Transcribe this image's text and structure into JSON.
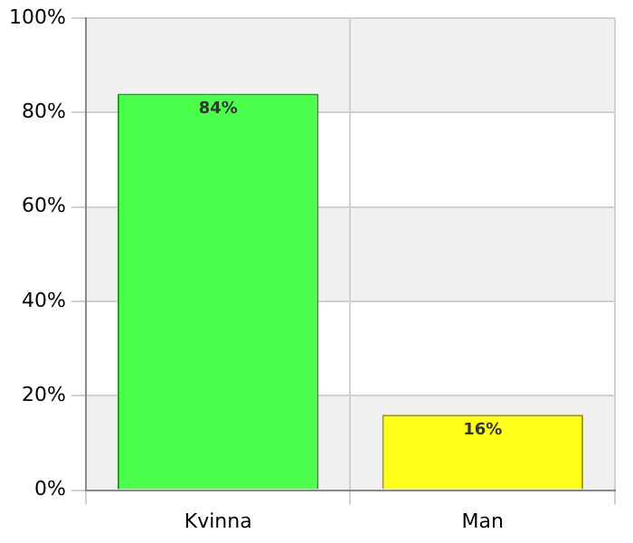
{
  "chart_data": {
    "type": "bar",
    "categories": [
      "Kvinna",
      "Man"
    ],
    "values": [
      84,
      16
    ],
    "colors": [
      "#4cff4c",
      "#ffff1a"
    ],
    "value_labels": [
      "84%",
      "16%"
    ],
    "ylim": [
      0,
      100
    ],
    "yticks": [
      {
        "value": 0,
        "label": "0%"
      },
      {
        "value": 20,
        "label": "20%"
      },
      {
        "value": 40,
        "label": "40%"
      },
      {
        "value": 60,
        "label": "60%"
      },
      {
        "value": 80,
        "label": "80%"
      },
      {
        "value": 100,
        "label": "100%"
      }
    ],
    "grid": true
  }
}
